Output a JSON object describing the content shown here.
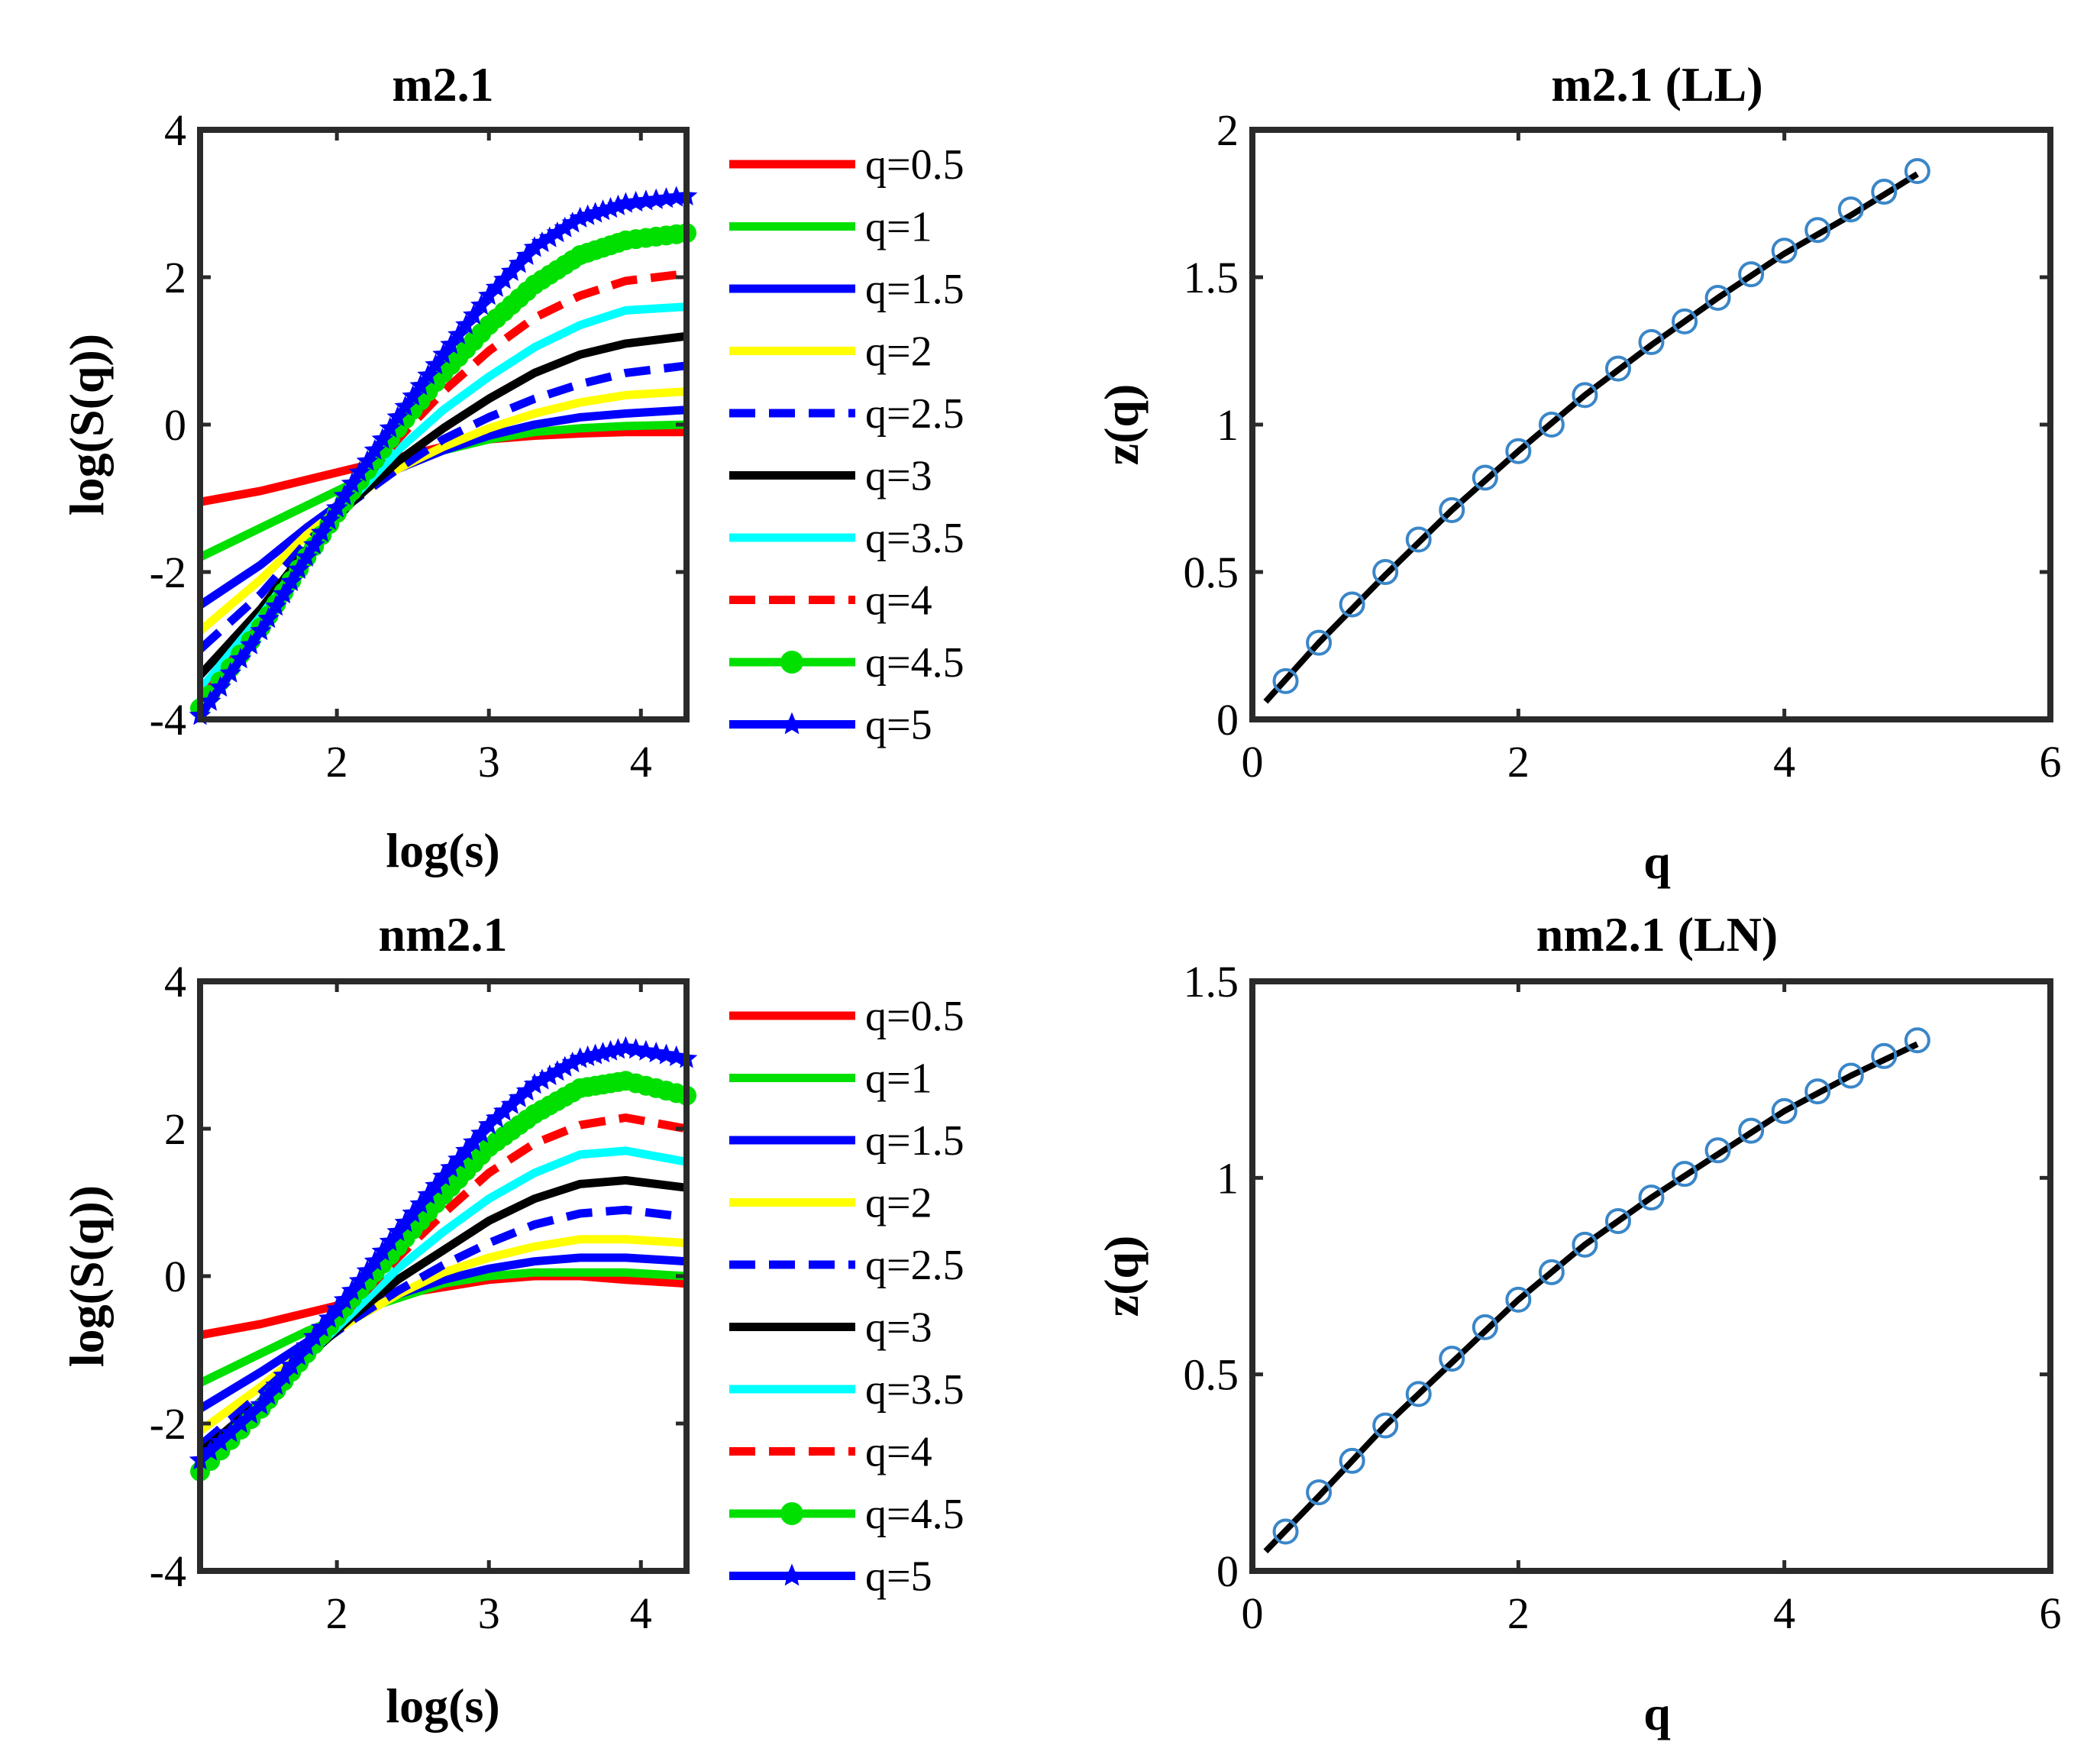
{
  "chart_data": [
    {
      "type": "line",
      "title": "m2.1",
      "xlabel": "log(s)",
      "ylabel": "log(S(q))",
      "xlim": [
        1.1,
        4.3
      ],
      "ylim": [
        -4,
        4
      ],
      "xticks": [
        "2",
        "3",
        "4"
      ],
      "yticks": [
        "-4",
        "-2",
        "0",
        "2",
        "4"
      ],
      "xtick_values": [
        2,
        3,
        4
      ],
      "ytick_values": [
        -4,
        -2,
        0,
        2,
        4
      ],
      "x": [
        1.1,
        1.5,
        1.8,
        2.1,
        2.4,
        2.7,
        3.0,
        3.3,
        3.6,
        3.9,
        4.3
      ],
      "series": [
        {
          "name": "q=0.5",
          "color": "#ff0000",
          "style": "solid",
          "marker": "none",
          "values": [
            -1.05,
            -0.9,
            -0.75,
            -0.6,
            -0.45,
            -0.3,
            -0.2,
            -0.15,
            -0.12,
            -0.1,
            -0.1
          ]
        },
        {
          "name": "q=1",
          "color": "#00e000",
          "style": "solid",
          "marker": "none",
          "values": [
            -1.8,
            -1.4,
            -1.1,
            -0.8,
            -0.55,
            -0.35,
            -0.2,
            -0.1,
            -0.05,
            -0.02,
            0.0
          ]
        },
        {
          "name": "q=1.5",
          "color": "#0000ff",
          "style": "solid",
          "marker": "none",
          "values": [
            -2.45,
            -1.9,
            -1.4,
            -0.95,
            -0.6,
            -0.35,
            -0.15,
            0.0,
            0.1,
            0.15,
            0.2
          ]
        },
        {
          "name": "q=2",
          "color": "#ffff00",
          "style": "solid",
          "marker": "none",
          "values": [
            -2.8,
            -2.1,
            -1.5,
            -1.0,
            -0.6,
            -0.3,
            -0.05,
            0.15,
            0.3,
            0.4,
            0.45
          ]
        },
        {
          "name": "q=2.5",
          "color": "#0000ff",
          "style": "dashed",
          "marker": "none",
          "values": [
            -3.05,
            -2.3,
            -1.6,
            -1.05,
            -0.6,
            -0.2,
            0.1,
            0.35,
            0.55,
            0.7,
            0.8
          ]
        },
        {
          "name": "q=3",
          "color": "#000000",
          "style": "solid",
          "marker": "none",
          "values": [
            -3.4,
            -2.5,
            -1.7,
            -1.05,
            -0.5,
            -0.05,
            0.35,
            0.7,
            0.95,
            1.1,
            1.2
          ]
        },
        {
          "name": "q=3.5",
          "color": "#00ffff",
          "style": "solid",
          "marker": "none",
          "values": [
            -3.6,
            -2.6,
            -1.75,
            -1.0,
            -0.35,
            0.2,
            0.65,
            1.05,
            1.35,
            1.55,
            1.6
          ]
        },
        {
          "name": "q=4",
          "color": "#ff0000",
          "style": "dashed",
          "marker": "none",
          "values": [
            -3.75,
            -2.7,
            -1.8,
            -0.95,
            -0.2,
            0.45,
            1.0,
            1.45,
            1.75,
            1.95,
            2.05
          ]
        },
        {
          "name": "q=4.5",
          "color": "#00e000",
          "style": "solid",
          "marker": "circle",
          "values": [
            -3.85,
            -2.75,
            -1.8,
            -0.9,
            -0.05,
            0.7,
            1.35,
            1.9,
            2.3,
            2.5,
            2.6
          ]
        },
        {
          "name": "q=5",
          "color": "#0000ff",
          "style": "solid",
          "marker": "star",
          "values": [
            -3.95,
            -2.8,
            -1.8,
            -0.8,
            0.1,
            0.95,
            1.75,
            2.4,
            2.8,
            3.0,
            3.1
          ]
        }
      ]
    },
    {
      "type": "scatter+line",
      "title": "m2.1 (LL)",
      "xlabel": "q",
      "ylabel": "z(q)",
      "xlim": [
        0,
        6
      ],
      "ylim": [
        0,
        2
      ],
      "xticks": [
        "0",
        "2",
        "4",
        "6"
      ],
      "yticks": [
        "0",
        "0.5",
        "1",
        "1.5",
        "2"
      ],
      "xtick_values": [
        0,
        2,
        4,
        6
      ],
      "ytick_values": [
        0,
        0.5,
        1,
        1.5,
        2
      ],
      "points_x": [
        0.25,
        0.5,
        0.75,
        1.0,
        1.25,
        1.5,
        1.75,
        2.0,
        2.25,
        2.5,
        2.75,
        3.0,
        3.25,
        3.5,
        3.75,
        4.0,
        4.25,
        4.5,
        4.75,
        5.0
      ],
      "points_y": [
        0.13,
        0.26,
        0.39,
        0.5,
        0.61,
        0.71,
        0.82,
        0.91,
        1.0,
        1.1,
        1.19,
        1.28,
        1.35,
        1.43,
        1.51,
        1.59,
        1.66,
        1.73,
        1.79,
        1.86
      ],
      "fit_x": [
        0.1,
        0.5,
        1.0,
        1.5,
        2.0,
        2.5,
        3.0,
        3.5,
        4.0,
        4.5,
        5.0
      ],
      "fit_y": [
        0.06,
        0.26,
        0.49,
        0.71,
        0.91,
        1.1,
        1.27,
        1.43,
        1.58,
        1.71,
        1.85
      ]
    },
    {
      "type": "line",
      "title": "nm2.1",
      "xlabel": "log(s)",
      "ylabel": "log(S(q))",
      "xlim": [
        1.1,
        4.3
      ],
      "ylim": [
        -4,
        4
      ],
      "xticks": [
        "2",
        "3",
        "4"
      ],
      "yticks": [
        "-4",
        "-2",
        "0",
        "2",
        "4"
      ],
      "xtick_values": [
        2,
        3,
        4
      ],
      "ytick_values": [
        -4,
        -2,
        0,
        2,
        4
      ],
      "x": [
        1.1,
        1.5,
        1.8,
        2.1,
        2.4,
        2.7,
        3.0,
        3.3,
        3.6,
        3.9,
        4.3
      ],
      "series": [
        {
          "name": "q=0.5",
          "color": "#ff0000",
          "style": "solid",
          "marker": "none",
          "values": [
            -0.8,
            -0.65,
            -0.5,
            -0.35,
            -0.25,
            -0.15,
            -0.05,
            0.0,
            0.0,
            -0.05,
            -0.1
          ]
        },
        {
          "name": "q=1",
          "color": "#00e000",
          "style": "solid",
          "marker": "none",
          "values": [
            -1.45,
            -1.05,
            -0.75,
            -0.5,
            -0.3,
            -0.1,
            0.0,
            0.05,
            0.05,
            0.05,
            0.0
          ]
        },
        {
          "name": "q=1.5",
          "color": "#0000ff",
          "style": "solid",
          "marker": "none",
          "values": [
            -1.8,
            -1.3,
            -0.9,
            -0.55,
            -0.25,
            -0.05,
            0.1,
            0.2,
            0.25,
            0.25,
            0.2
          ]
        },
        {
          "name": "q=2",
          "color": "#ffff00",
          "style": "solid",
          "marker": "none",
          "values": [
            -2.1,
            -1.5,
            -1.0,
            -0.6,
            -0.25,
            0.05,
            0.25,
            0.4,
            0.5,
            0.5,
            0.45
          ]
        },
        {
          "name": "q=2.5",
          "color": "#0000ff",
          "style": "dashed",
          "marker": "none",
          "values": [
            -2.3,
            -1.6,
            -1.05,
            -0.6,
            -0.2,
            0.15,
            0.45,
            0.7,
            0.85,
            0.9,
            0.8
          ]
        },
        {
          "name": "q=3",
          "color": "#000000",
          "style": "solid",
          "marker": "none",
          "values": [
            -2.4,
            -1.7,
            -1.1,
            -0.55,
            -0.05,
            0.35,
            0.75,
            1.05,
            1.25,
            1.3,
            1.2
          ]
        },
        {
          "name": "q=3.5",
          "color": "#00ffff",
          "style": "solid",
          "marker": "none",
          "values": [
            -2.5,
            -1.75,
            -1.1,
            -0.5,
            0.1,
            0.6,
            1.05,
            1.4,
            1.65,
            1.7,
            1.55
          ]
        },
        {
          "name": "q=4",
          "color": "#ff0000",
          "style": "dashed",
          "marker": "none",
          "values": [
            -2.6,
            -1.8,
            -1.1,
            -0.4,
            0.25,
            0.85,
            1.4,
            1.8,
            2.05,
            2.15,
            2.0
          ]
        },
        {
          "name": "q=4.5",
          "color": "#00e000",
          "style": "solid",
          "marker": "circle",
          "values": [
            -2.65,
            -1.8,
            -1.05,
            -0.3,
            0.4,
            1.1,
            1.75,
            2.2,
            2.55,
            2.65,
            2.45
          ]
        },
        {
          "name": "q=5",
          "color": "#0000ff",
          "style": "solid",
          "marker": "star",
          "values": [
            -2.5,
            -1.75,
            -0.95,
            -0.2,
            0.6,
            1.35,
            2.05,
            2.6,
            2.95,
            3.1,
            2.95
          ]
        }
      ]
    },
    {
      "type": "scatter+line",
      "title": "nm2.1 (LN)",
      "xlabel": "q",
      "ylabel": "z(q)",
      "xlim": [
        0,
        6
      ],
      "ylim": [
        0,
        1.5
      ],
      "xticks": [
        "0",
        "2",
        "4",
        "6"
      ],
      "yticks": [
        "0",
        "0.5",
        "1",
        "1.5"
      ],
      "xtick_values": [
        0,
        2,
        4,
        6
      ],
      "ytick_values": [
        0,
        0.5,
        1,
        1.5
      ],
      "points_x": [
        0.25,
        0.5,
        0.75,
        1.0,
        1.25,
        1.5,
        1.75,
        2.0,
        2.25,
        2.5,
        2.75,
        3.0,
        3.25,
        3.5,
        3.75,
        4.0,
        4.25,
        4.5,
        4.75,
        5.0
      ],
      "points_y": [
        0.1,
        0.2,
        0.28,
        0.37,
        0.45,
        0.54,
        0.62,
        0.69,
        0.76,
        0.83,
        0.89,
        0.95,
        1.01,
        1.07,
        1.12,
        1.17,
        1.22,
        1.26,
        1.31,
        1.35
      ],
      "fit_x": [
        0.1,
        0.5,
        1.0,
        1.5,
        2.0,
        2.5,
        3.0,
        3.5,
        4.0,
        4.5,
        5.0
      ],
      "fit_y": [
        0.05,
        0.19,
        0.37,
        0.53,
        0.69,
        0.83,
        0.95,
        1.06,
        1.17,
        1.26,
        1.34
      ]
    }
  ]
}
